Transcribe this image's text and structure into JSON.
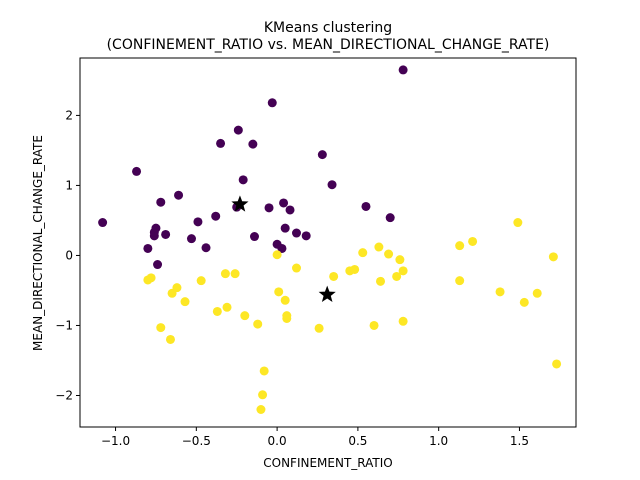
{
  "chart_data": {
    "type": "scatter",
    "title_line1": "KMeans clustering",
    "title_line2": "(CONFINEMENT_RATIO vs. MEAN_DIRECTIONAL_CHANGE_RATE)",
    "xlabel": "CONFINEMENT_RATIO",
    "ylabel": "MEAN_DIRECTIONAL_CHANGE_RATE",
    "xlim": [
      -1.22,
      1.85
    ],
    "ylim": [
      -2.45,
      2.82
    ],
    "x_ticks": [
      -1.0,
      -0.5,
      0.0,
      0.5,
      1.0,
      1.5
    ],
    "x_tick_labels": [
      "−1.0",
      "−0.5",
      "0.0",
      "0.5",
      "1.0",
      "1.5"
    ],
    "y_ticks": [
      -2,
      -1,
      0,
      1,
      2
    ],
    "y_tick_labels": [
      "−2",
      "−1",
      "0",
      "1",
      "2"
    ],
    "grid": false,
    "colors": {
      "cluster_0": "#440154",
      "cluster_1": "#fde725",
      "centroid": "#000000"
    },
    "series": [
      {
        "color": "#440154",
        "points": [
          [
            -1.08,
            0.47
          ],
          [
            -0.87,
            1.2
          ],
          [
            -0.8,
            0.1
          ],
          [
            -0.76,
            0.28
          ],
          [
            -0.76,
            0.33
          ],
          [
            -0.75,
            0.39
          ],
          [
            -0.74,
            -0.13
          ],
          [
            -0.72,
            0.76
          ],
          [
            -0.69,
            0.3
          ],
          [
            -0.61,
            0.86
          ],
          [
            -0.53,
            0.24
          ],
          [
            -0.49,
            0.48
          ],
          [
            -0.44,
            0.11
          ],
          [
            -0.38,
            0.56
          ],
          [
            -0.35,
            1.6
          ],
          [
            -0.25,
            0.69
          ],
          [
            -0.24,
            1.79
          ],
          [
            -0.21,
            1.08
          ],
          [
            -0.15,
            1.59
          ],
          [
            -0.14,
            0.27
          ],
          [
            -0.05,
            0.68
          ],
          [
            -0.03,
            2.18
          ],
          [
            0.0,
            0.16
          ],
          [
            0.03,
            0.1
          ],
          [
            0.04,
            0.75
          ],
          [
            0.05,
            0.39
          ],
          [
            0.08,
            0.65
          ],
          [
            0.12,
            0.32
          ],
          [
            0.18,
            0.28
          ],
          [
            0.28,
            1.44
          ],
          [
            0.34,
            1.01
          ],
          [
            0.55,
            0.7
          ],
          [
            0.7,
            0.54
          ],
          [
            0.78,
            2.65
          ]
        ]
      },
      {
        "color": "#fde725",
        "points": [
          [
            -0.8,
            -0.35
          ],
          [
            -0.78,
            -0.32
          ],
          [
            -0.72,
            -1.03
          ],
          [
            -0.66,
            -1.2
          ],
          [
            -0.65,
            -0.54
          ],
          [
            -0.62,
            -0.46
          ],
          [
            -0.57,
            -0.66
          ],
          [
            -0.47,
            -0.36
          ],
          [
            -0.37,
            -0.8
          ],
          [
            -0.32,
            -0.26
          ],
          [
            -0.31,
            -0.74
          ],
          [
            -0.26,
            -0.26
          ],
          [
            -0.2,
            -0.86
          ],
          [
            -0.12,
            -0.98
          ],
          [
            -0.1,
            -2.2
          ],
          [
            -0.09,
            -1.99
          ],
          [
            -0.08,
            -1.65
          ],
          [
            0.0,
            0.01
          ],
          [
            0.01,
            -0.52
          ],
          [
            0.05,
            -0.64
          ],
          [
            0.06,
            -0.9
          ],
          [
            0.06,
            -0.86
          ],
          [
            0.12,
            -0.18
          ],
          [
            0.26,
            -1.04
          ],
          [
            0.35,
            -0.3
          ],
          [
            0.45,
            -0.22
          ],
          [
            0.48,
            -0.2
          ],
          [
            0.53,
            0.04
          ],
          [
            0.6,
            -1.0
          ],
          [
            0.63,
            0.12
          ],
          [
            0.64,
            -0.37
          ],
          [
            0.69,
            0.02
          ],
          [
            0.74,
            -0.3
          ],
          [
            0.76,
            -0.06
          ],
          [
            0.78,
            -0.22
          ],
          [
            0.78,
            -0.94
          ],
          [
            1.13,
            0.14
          ],
          [
            1.13,
            -0.36
          ],
          [
            1.21,
            0.2
          ],
          [
            1.38,
            -0.52
          ],
          [
            1.49,
            0.47
          ],
          [
            1.53,
            -0.67
          ],
          [
            1.61,
            -0.54
          ],
          [
            1.71,
            -0.02
          ],
          [
            1.73,
            -1.55
          ]
        ]
      }
    ],
    "centroids": [
      [
        -0.23,
        0.73
      ],
      [
        0.31,
        -0.56
      ]
    ]
  }
}
